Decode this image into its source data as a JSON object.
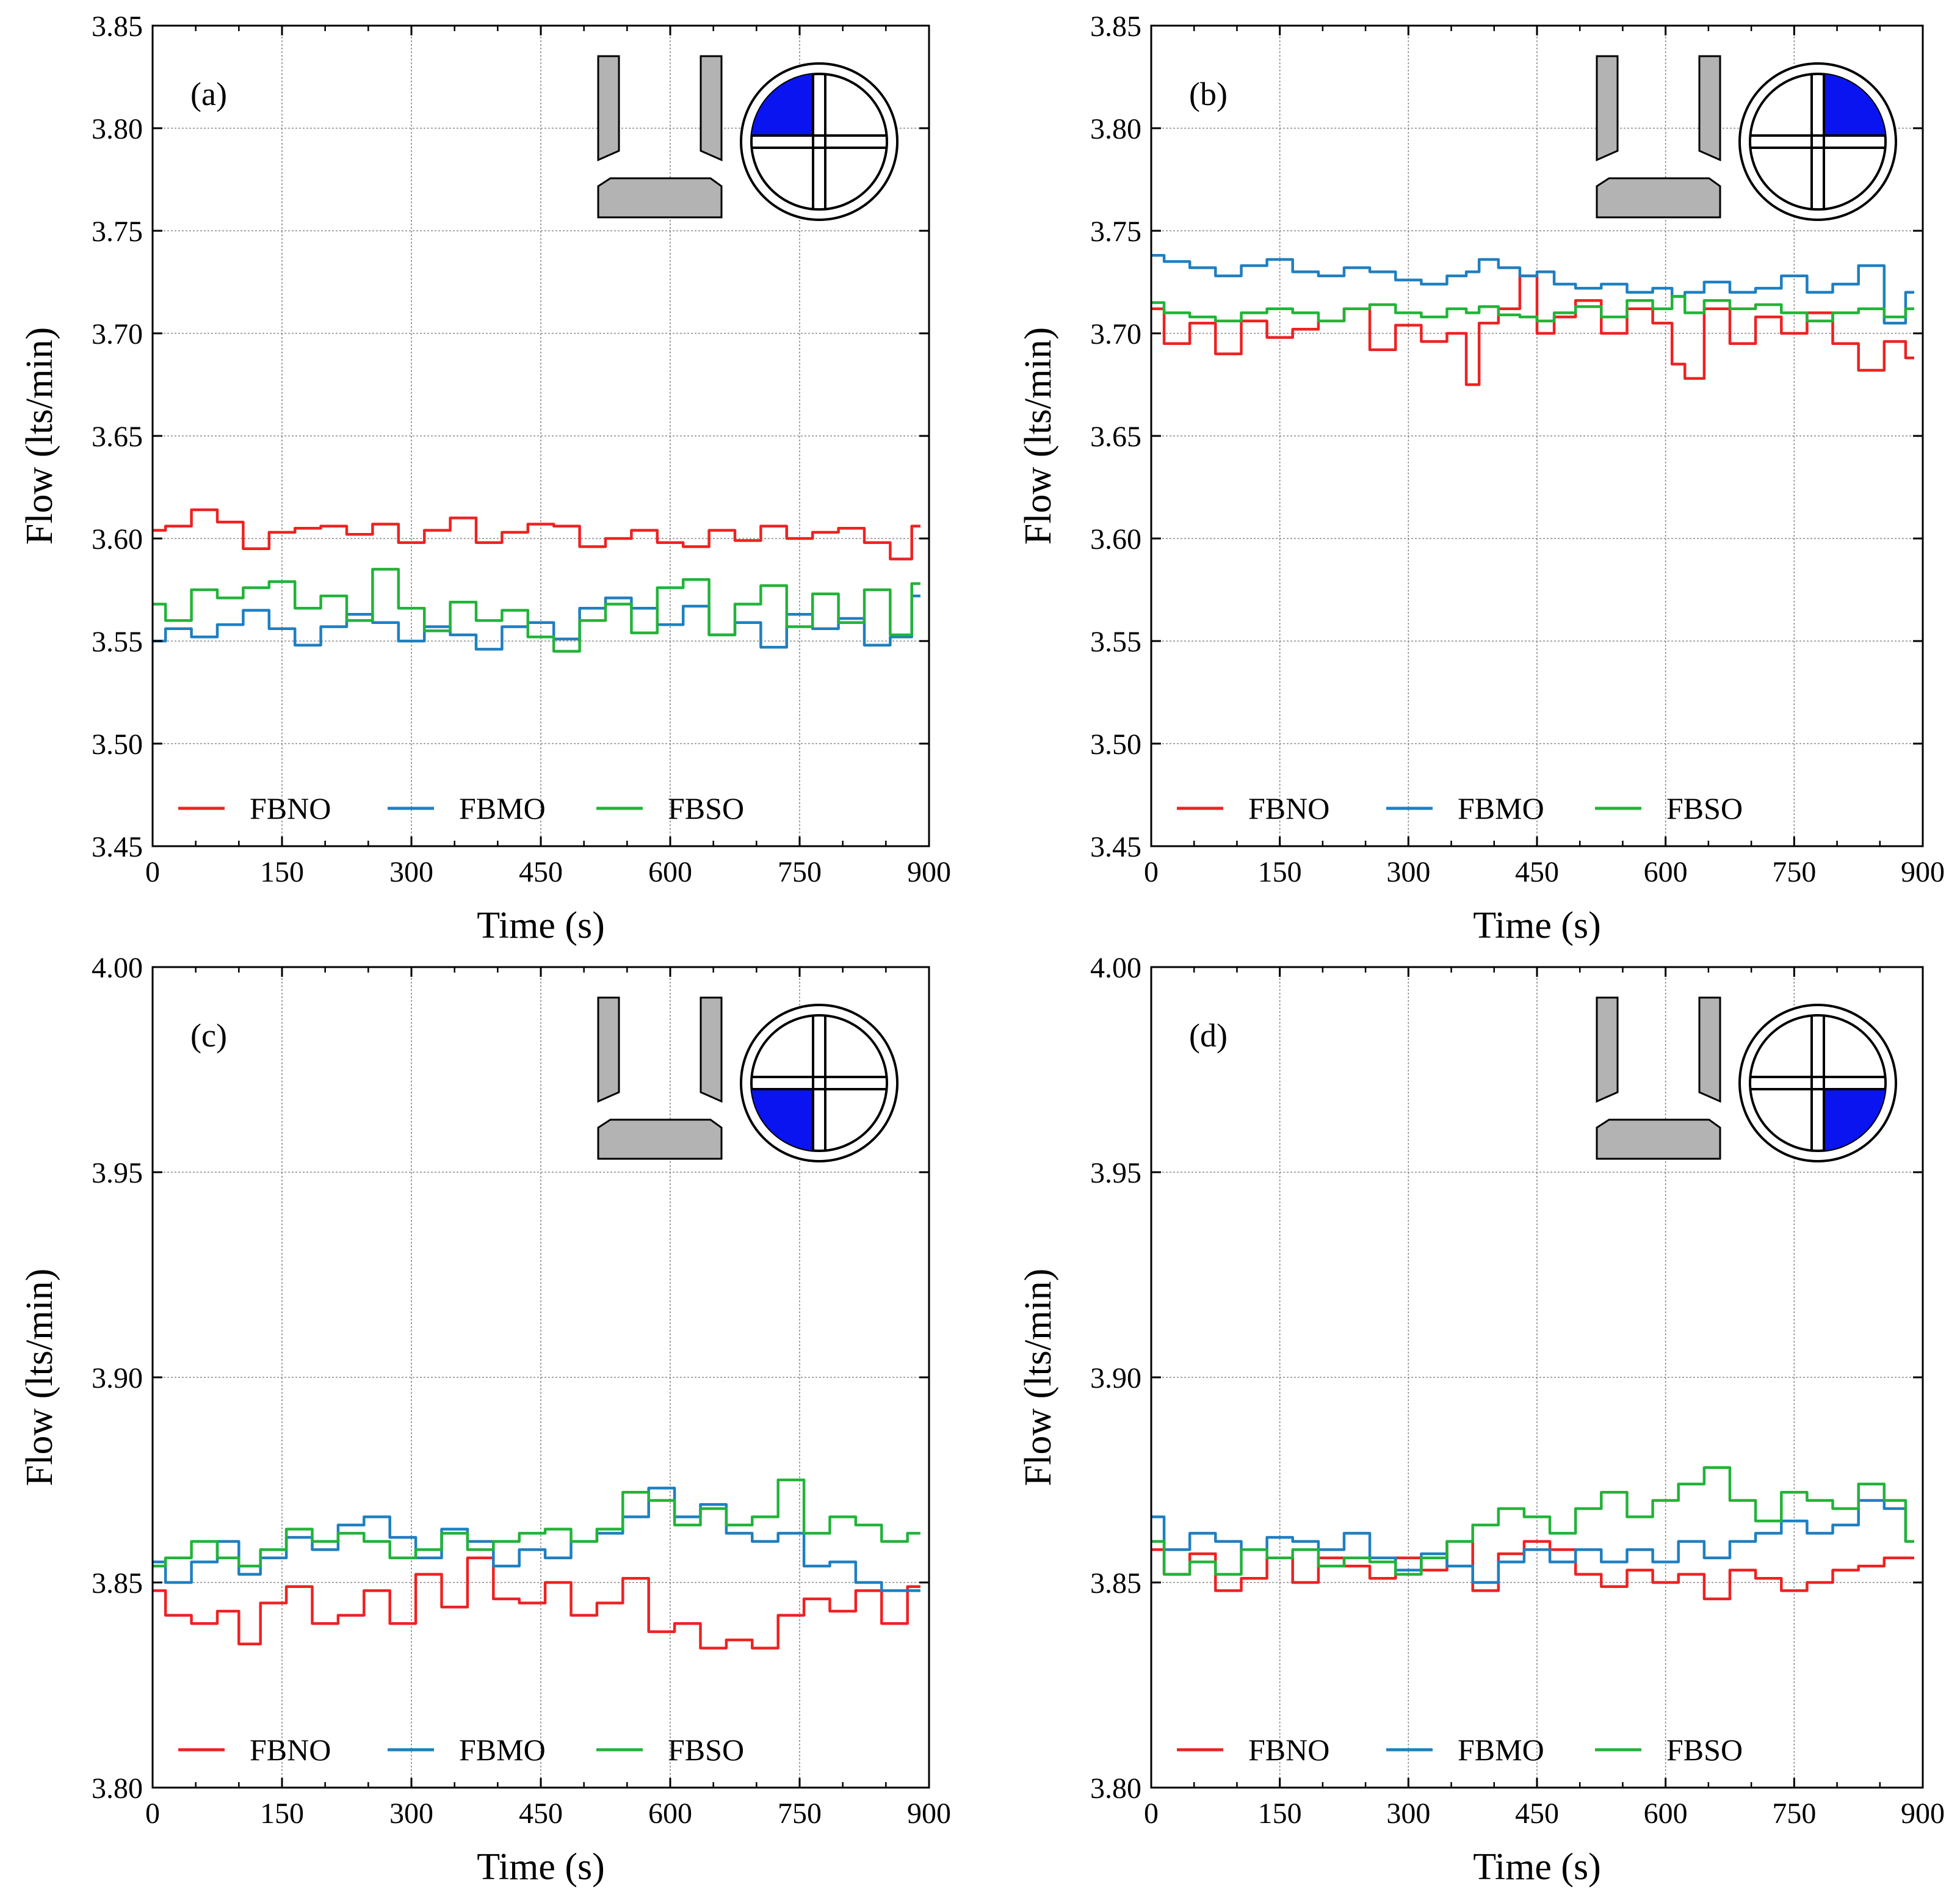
{
  "figure": {
    "description_visible": false
  },
  "chart_data": [
    {
      "id": "a",
      "panel_label": "(a)",
      "type": "line",
      "xlabel": "Time (s)",
      "ylabel": "Flow (lts/min)",
      "xlim": [
        0,
        900
      ],
      "ylim": [
        3.45,
        3.85
      ],
      "xticks": [
        0,
        150,
        300,
        450,
        600,
        750,
        900
      ],
      "yticks": [
        3.45,
        3.5,
        3.55,
        3.6,
        3.65,
        3.7,
        3.75,
        3.8,
        3.85
      ],
      "ytick_labels": [
        "3.45",
        "3.50",
        "3.55",
        "3.60",
        "3.65",
        "3.70",
        "3.75",
        "3.80",
        "3.85"
      ],
      "grid": true,
      "legend_position": "bottom",
      "inset_quadrant": "top-left",
      "x": [
        0,
        30,
        60,
        90,
        120,
        150,
        180,
        210,
        240,
        270,
        300,
        330,
        360,
        390,
        420,
        450,
        480,
        510,
        540,
        570,
        600,
        630,
        660,
        690,
        720,
        750,
        780,
        810,
        840,
        870,
        890
      ],
      "series": [
        {
          "name": "FBNO",
          "color": "#ee2222",
          "values": [
            3.604,
            3.606,
            3.614,
            3.608,
            3.595,
            3.603,
            3.605,
            3.606,
            3.602,
            3.607,
            3.598,
            3.604,
            3.61,
            3.598,
            3.603,
            3.607,
            3.606,
            3.596,
            3.6,
            3.604,
            3.598,
            3.596,
            3.604,
            3.599,
            3.606,
            3.6,
            3.603,
            3.605,
            3.598,
            3.59,
            3.606
          ]
        },
        {
          "name": "FBMO",
          "color": "#1f7fc0",
          "values": [
            3.55,
            3.556,
            3.552,
            3.558,
            3.565,
            3.556,
            3.548,
            3.557,
            3.563,
            3.559,
            3.55,
            3.557,
            3.553,
            3.546,
            3.557,
            3.559,
            3.551,
            3.566,
            3.571,
            3.566,
            3.558,
            3.567,
            3.553,
            3.559,
            3.547,
            3.563,
            3.556,
            3.561,
            3.548,
            3.552,
            3.572
          ]
        },
        {
          "name": "FBSO",
          "color": "#22b33a",
          "values": [
            3.568,
            3.56,
            3.575,
            3.571,
            3.576,
            3.579,
            3.566,
            3.572,
            3.56,
            3.585,
            3.566,
            3.555,
            3.569,
            3.56,
            3.565,
            3.552,
            3.545,
            3.56,
            3.568,
            3.554,
            3.576,
            3.58,
            3.553,
            3.568,
            3.577,
            3.557,
            3.573,
            3.559,
            3.575,
            3.553,
            3.578
          ]
        }
      ]
    },
    {
      "id": "b",
      "panel_label": "(b)",
      "type": "line",
      "xlabel": "Time (s)",
      "ylabel": "Flow (lts/min)",
      "xlim": [
        0,
        900
      ],
      "ylim": [
        3.45,
        3.85
      ],
      "xticks": [
        0,
        150,
        300,
        450,
        600,
        750,
        900
      ],
      "yticks": [
        3.45,
        3.5,
        3.55,
        3.6,
        3.65,
        3.7,
        3.75,
        3.8,
        3.85
      ],
      "ytick_labels": [
        "3.45",
        "3.50",
        "3.55",
        "3.60",
        "3.65",
        "3.70",
        "3.75",
        "3.80",
        "3.85"
      ],
      "grid": true,
      "legend_position": "bottom",
      "inset_quadrant": "top-right",
      "x": [
        0,
        30,
        60,
        90,
        120,
        150,
        180,
        210,
        240,
        270,
        300,
        330,
        360,
        375,
        390,
        420,
        440,
        460,
        480,
        510,
        540,
        570,
        600,
        615,
        630,
        660,
        690,
        720,
        750,
        780,
        810,
        840,
        870,
        890
      ],
      "series": [
        {
          "name": "FBNO",
          "color": "#ee2222",
          "values": [
            3.712,
            3.695,
            3.705,
            3.69,
            3.706,
            3.698,
            3.702,
            3.706,
            3.712,
            3.692,
            3.704,
            3.696,
            3.7,
            3.675,
            3.705,
            3.712,
            3.728,
            3.7,
            3.708,
            3.716,
            3.7,
            3.712,
            3.705,
            3.685,
            3.678,
            3.712,
            3.695,
            3.708,
            3.7,
            3.71,
            3.695,
            3.682,
            3.696,
            3.688
          ]
        },
        {
          "name": "FBMO",
          "color": "#1f7fc0",
          "values": [
            3.738,
            3.735,
            3.732,
            3.728,
            3.733,
            3.736,
            3.73,
            3.728,
            3.732,
            3.73,
            3.726,
            3.724,
            3.728,
            3.73,
            3.736,
            3.732,
            3.728,
            3.73,
            3.724,
            3.722,
            3.724,
            3.72,
            3.722,
            3.718,
            3.72,
            3.725,
            3.72,
            3.722,
            3.728,
            3.72,
            3.724,
            3.733,
            3.705,
            3.72
          ]
        },
        {
          "name": "FBSO",
          "color": "#22b33a",
          "values": [
            3.715,
            3.71,
            3.708,
            3.706,
            3.71,
            3.712,
            3.71,
            3.706,
            3.712,
            3.714,
            3.71,
            3.708,
            3.712,
            3.71,
            3.713,
            3.709,
            3.708,
            3.706,
            3.71,
            3.713,
            3.708,
            3.716,
            3.712,
            3.718,
            3.71,
            3.716,
            3.712,
            3.714,
            3.71,
            3.706,
            3.71,
            3.712,
            3.708,
            3.712
          ]
        }
      ]
    },
    {
      "id": "c",
      "panel_label": "(c)",
      "type": "line",
      "xlabel": "Time (s)",
      "ylabel": "Flow (lts/min)",
      "xlim": [
        0,
        900
      ],
      "ylim": [
        3.8,
        4.0
      ],
      "xticks": [
        0,
        150,
        300,
        450,
        600,
        750,
        900
      ],
      "yticks": [
        3.8,
        3.85,
        3.9,
        3.95,
        4.0
      ],
      "ytick_labels": [
        "3.80",
        "3.85",
        "3.90",
        "3.95",
        "4.00"
      ],
      "grid": true,
      "legend_position": "bottom",
      "inset_quadrant": "bottom-left",
      "x": [
        0,
        30,
        60,
        90,
        110,
        140,
        170,
        200,
        230,
        260,
        290,
        320,
        350,
        380,
        410,
        440,
        470,
        500,
        530,
        560,
        590,
        620,
        650,
        680,
        710,
        740,
        770,
        800,
        830,
        860,
        890
      ],
      "series": [
        {
          "name": "FBNO",
          "color": "#ee2222",
          "values": [
            3.848,
            3.842,
            3.84,
            3.843,
            3.835,
            3.845,
            3.849,
            3.84,
            3.842,
            3.848,
            3.84,
            3.852,
            3.844,
            3.856,
            3.846,
            3.845,
            3.85,
            3.842,
            3.845,
            3.851,
            3.838,
            3.84,
            3.834,
            3.836,
            3.834,
            3.842,
            3.846,
            3.843,
            3.848,
            3.84,
            3.849
          ]
        },
        {
          "name": "FBMO",
          "color": "#1f7fc0",
          "values": [
            3.855,
            3.85,
            3.855,
            3.86,
            3.852,
            3.856,
            3.861,
            3.858,
            3.864,
            3.866,
            3.861,
            3.856,
            3.863,
            3.86,
            3.854,
            3.858,
            3.856,
            3.86,
            3.862,
            3.866,
            3.873,
            3.866,
            3.869,
            3.862,
            3.86,
            3.862,
            3.854,
            3.855,
            3.85,
            3.848,
            3.848
          ]
        },
        {
          "name": "FBSO",
          "color": "#22b33a",
          "values": [
            3.854,
            3.856,
            3.86,
            3.856,
            3.854,
            3.858,
            3.863,
            3.86,
            3.862,
            3.86,
            3.856,
            3.858,
            3.862,
            3.858,
            3.86,
            3.862,
            3.863,
            3.86,
            3.863,
            3.872,
            3.87,
            3.864,
            3.868,
            3.864,
            3.866,
            3.875,
            3.862,
            3.866,
            3.864,
            3.86,
            3.862
          ]
        }
      ]
    },
    {
      "id": "d",
      "panel_label": "(d)",
      "type": "line",
      "xlabel": "Time (s)",
      "ylabel": "Flow (lts/min)",
      "xlim": [
        0,
        900
      ],
      "ylim": [
        3.8,
        4.0
      ],
      "xticks": [
        0,
        150,
        300,
        450,
        600,
        750,
        900
      ],
      "yticks": [
        3.8,
        3.85,
        3.9,
        3.95,
        4.0
      ],
      "ytick_labels": [
        "3.80",
        "3.85",
        "3.90",
        "3.95",
        "4.00"
      ],
      "grid": true,
      "legend_position": "bottom",
      "inset_quadrant": "bottom-right",
      "x": [
        0,
        30,
        60,
        90,
        120,
        150,
        180,
        210,
        240,
        270,
        300,
        330,
        360,
        390,
        420,
        450,
        480,
        510,
        540,
        570,
        600,
        630,
        660,
        690,
        720,
        750,
        780,
        810,
        840,
        870,
        890
      ],
      "series": [
        {
          "name": "FBNO",
          "color": "#ee2222",
          "values": [
            3.858,
            3.852,
            3.857,
            3.848,
            3.851,
            3.856,
            3.85,
            3.856,
            3.854,
            3.851,
            3.856,
            3.853,
            3.86,
            3.848,
            3.857,
            3.86,
            3.858,
            3.852,
            3.849,
            3.853,
            3.85,
            3.852,
            3.846,
            3.853,
            3.851,
            3.848,
            3.85,
            3.853,
            3.854,
            3.856,
            3.856
          ]
        },
        {
          "name": "FBMO",
          "color": "#1f7fc0",
          "values": [
            3.866,
            3.858,
            3.862,
            3.86,
            3.858,
            3.861,
            3.86,
            3.858,
            3.862,
            3.856,
            3.853,
            3.857,
            3.854,
            3.85,
            3.855,
            3.858,
            3.855,
            3.858,
            3.855,
            3.858,
            3.855,
            3.86,
            3.856,
            3.86,
            3.862,
            3.865,
            3.862,
            3.864,
            3.87,
            3.868,
            3.86
          ]
        },
        {
          "name": "FBSO",
          "color": "#22b33a",
          "values": [
            3.86,
            3.852,
            3.855,
            3.852,
            3.858,
            3.856,
            3.858,
            3.854,
            3.856,
            3.855,
            3.852,
            3.856,
            3.86,
            3.864,
            3.868,
            3.866,
            3.862,
            3.868,
            3.872,
            3.866,
            3.87,
            3.874,
            3.878,
            3.87,
            3.865,
            3.872,
            3.87,
            3.868,
            3.874,
            3.87,
            3.86
          ]
        }
      ]
    }
  ]
}
